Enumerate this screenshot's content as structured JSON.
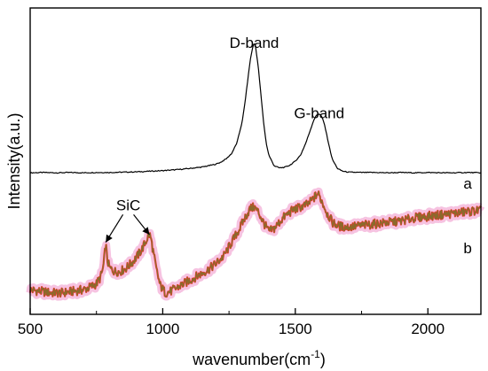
{
  "chart_data": {
    "type": "line",
    "title": "",
    "xlabel": {
      "text": "wavenumber(cm",
      "superscript": "-1",
      "suffix": ")"
    },
    "ylabel": "Intensity(a.u.)",
    "xlim": [
      500,
      2200
    ],
    "x_ticks": [
      500,
      1000,
      1500,
      2000
    ],
    "y_ticks_shown": false,
    "grid": false,
    "legend": "none",
    "annotations": [
      {
        "text": "D-band",
        "x": 1345,
        "y": 0.87
      },
      {
        "text": "G-band",
        "x": 1590,
        "y": 0.64
      },
      {
        "text": "SiC",
        "x": 870,
        "y": 0.34,
        "arrows_to": [
          {
            "x": 785,
            "y": 0.235
          },
          {
            "x": 950,
            "y": 0.26
          }
        ]
      },
      {
        "text": "a",
        "x": 2150,
        "y": 0.41
      },
      {
        "text": "b",
        "x": 2150,
        "y": 0.2
      }
    ],
    "series": [
      {
        "color": "#000000",
        "width": 1.2,
        "x": [
          500,
          550,
          600,
          650,
          700,
          750,
          800,
          850,
          900,
          950,
          1000,
          1050,
          1100,
          1150,
          1200,
          1220,
          1240,
          1260,
          1280,
          1300,
          1310,
          1320,
          1330,
          1340,
          1345,
          1350,
          1360,
          1370,
          1380,
          1390,
          1400,
          1420,
          1440,
          1460,
          1480,
          1500,
          1520,
          1540,
          1560,
          1570,
          1580,
          1590,
          1600,
          1610,
          1620,
          1630,
          1640,
          1660,
          1680,
          1700,
          1750,
          1800,
          1850,
          1900,
          1950,
          2000,
          2050,
          2100,
          2150,
          2200
        ],
        "y": [
          0.462,
          0.463,
          0.462,
          0.463,
          0.462,
          0.463,
          0.463,
          0.464,
          0.465,
          0.467,
          0.469,
          0.472,
          0.476,
          0.481,
          0.49,
          0.497,
          0.508,
          0.525,
          0.56,
          0.63,
          0.69,
          0.76,
          0.83,
          0.875,
          0.885,
          0.875,
          0.81,
          0.72,
          0.63,
          0.56,
          0.52,
          0.485,
          0.478,
          0.48,
          0.487,
          0.5,
          0.52,
          0.56,
          0.61,
          0.635,
          0.65,
          0.655,
          0.645,
          0.62,
          0.58,
          0.54,
          0.505,
          0.475,
          0.467,
          0.464,
          0.463,
          0.463,
          0.462,
          0.463,
          0.462,
          0.463,
          0.462,
          0.462,
          0.463,
          0.462
        ]
      },
      {
        "color": "#8b6a2b",
        "highlight": "#ff3030",
        "halo": "#f5b8dc",
        "width": 1.3,
        "x": [
          500,
          540,
          580,
          620,
          660,
          700,
          730,
          750,
          765,
          775,
          780,
          785,
          790,
          800,
          820,
          840,
          860,
          880,
          900,
          920,
          935,
          945,
          950,
          955,
          965,
          975,
          990,
          1010,
          1030,
          1050,
          1080,
          1110,
          1140,
          1170,
          1200,
          1230,
          1260,
          1290,
          1310,
          1330,
          1345,
          1360,
          1380,
          1400,
          1420,
          1440,
          1460,
          1490,
          1520,
          1550,
          1570,
          1585,
          1600,
          1620,
          1640,
          1660,
          1680,
          1700,
          1750,
          1800,
          1850,
          1900,
          1950,
          2000,
          2050,
          2100,
          2150,
          2200
        ],
        "y": [
          0.08,
          0.075,
          0.07,
          0.07,
          0.075,
          0.08,
          0.09,
          0.1,
          0.12,
          0.15,
          0.185,
          0.235,
          0.18,
          0.15,
          0.14,
          0.14,
          0.15,
          0.165,
          0.185,
          0.21,
          0.235,
          0.255,
          0.26,
          0.25,
          0.2,
          0.15,
          0.095,
          0.07,
          0.075,
          0.085,
          0.1,
          0.115,
          0.13,
          0.145,
          0.165,
          0.19,
          0.235,
          0.28,
          0.315,
          0.345,
          0.35,
          0.335,
          0.3,
          0.27,
          0.28,
          0.3,
          0.32,
          0.34,
          0.35,
          0.36,
          0.38,
          0.395,
          0.37,
          0.33,
          0.3,
          0.29,
          0.285,
          0.285,
          0.29,
          0.295,
          0.3,
          0.305,
          0.315,
          0.32,
          0.325,
          0.33,
          0.335,
          0.34
        ]
      }
    ]
  }
}
